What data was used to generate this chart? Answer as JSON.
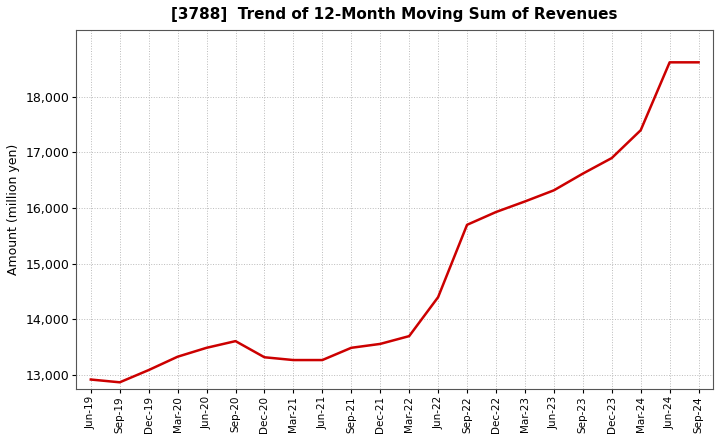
{
  "title": "[3788]  Trend of 12-Month Moving Sum of Revenues",
  "ylabel": "Amount (million yen)",
  "line_color": "#cc0000",
  "line_width": 1.8,
  "background_color": "#ffffff",
  "plot_bg_color": "#ffffff",
  "grid_color": "#bbbbbb",
  "ylim": [
    12750,
    19200
  ],
  "yticks": [
    13000,
    14000,
    15000,
    16000,
    17000,
    18000
  ],
  "x_labels": [
    "Jun-19",
    "Sep-19",
    "Dec-19",
    "Mar-20",
    "Jun-20",
    "Sep-20",
    "Dec-20",
    "Mar-21",
    "Jun-21",
    "Sep-21",
    "Dec-21",
    "Mar-22",
    "Jun-22",
    "Sep-22",
    "Dec-22",
    "Mar-23",
    "Jun-23",
    "Sep-23",
    "Dec-23",
    "Mar-24",
    "Jun-24",
    "Sep-24"
  ],
  "values": [
    12920,
    12870,
    13090,
    13330,
    13490,
    13610,
    13320,
    13270,
    13270,
    13490,
    13560,
    13700,
    14400,
    15700,
    15930,
    16120,
    16320,
    16620,
    16900,
    17400,
    18620,
    18620
  ]
}
